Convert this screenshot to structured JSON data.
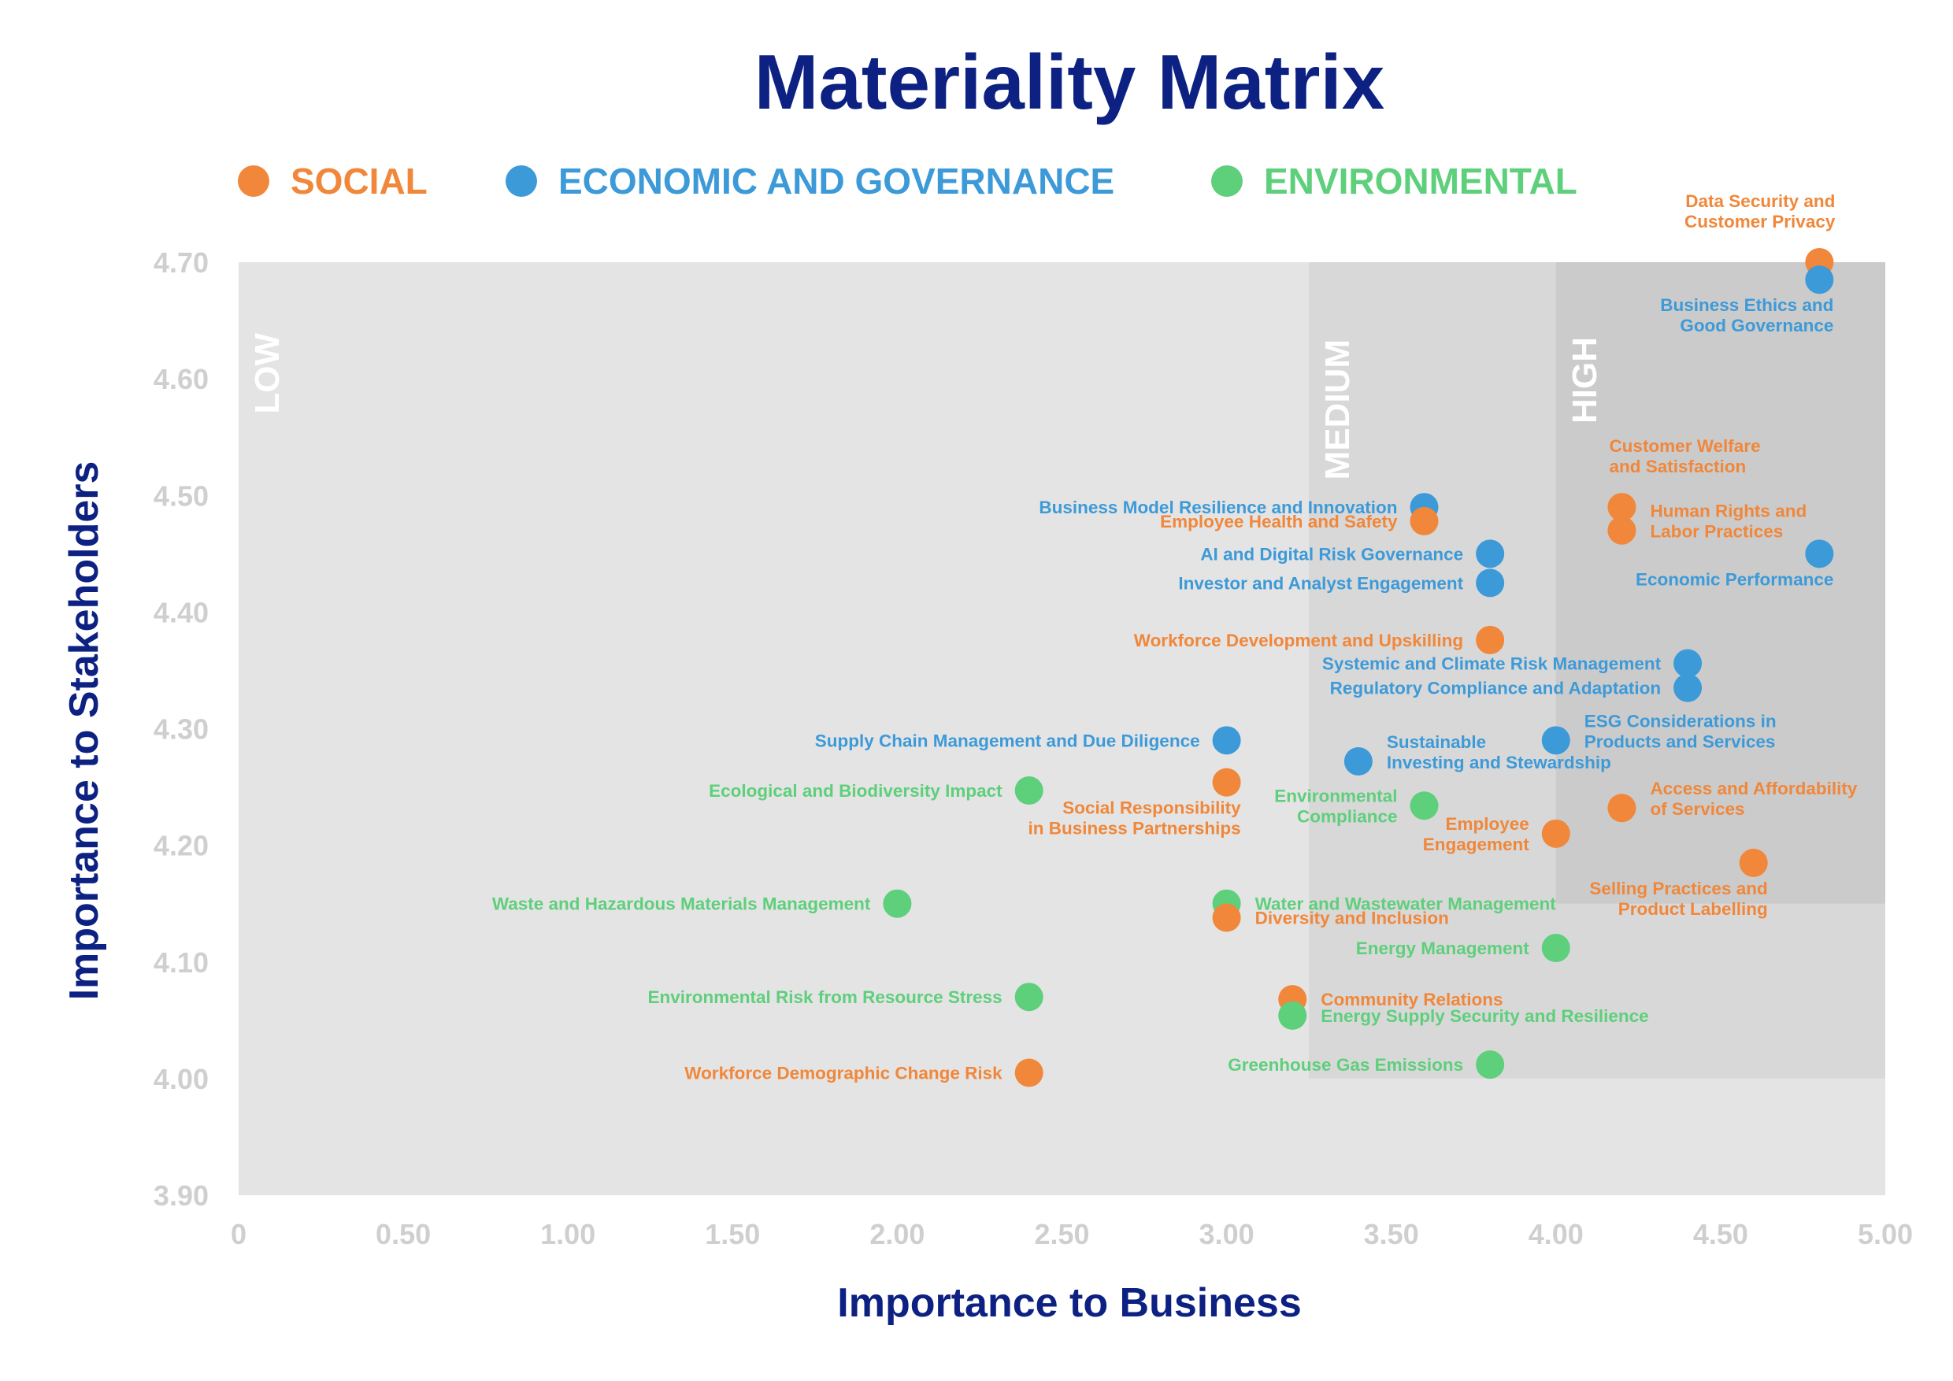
{
  "chart_data": {
    "type": "scatter",
    "title": "Materiality Matrix",
    "xlabel": "Importance to Business",
    "ylabel": "Importance to Stakeholders",
    "xlim": [
      0,
      5.0
    ],
    "ylim": [
      3.9,
      4.7
    ],
    "x_ticks": [
      "0",
      "0.50",
      "1.00",
      "1.50",
      "2.00",
      "2.50",
      "3.00",
      "3.50",
      "4.00",
      "4.50",
      "5.00"
    ],
    "y_ticks": [
      "3.90",
      "4.00",
      "4.10",
      "4.20",
      "4.30",
      "4.40",
      "4.50",
      "4.60",
      "4.70"
    ],
    "zones": [
      {
        "label": "LOW",
        "x_from": 0,
        "x_to": 5.0,
        "y_from": 3.9,
        "y_to": 4.7,
        "color": "#e4e4e4"
      },
      {
        "label": "MEDIUM",
        "x_from": 3.25,
        "x_to": 5.0,
        "y_from": 4.0,
        "y_to": 4.7,
        "color": "#d8d8d8"
      },
      {
        "label": "HIGH",
        "x_from": 4.0,
        "x_to": 5.0,
        "y_from": 4.15,
        "y_to": 4.7,
        "color": "#cbcbcb"
      }
    ],
    "categories": [
      {
        "key": "social",
        "name": "SOCIAL",
        "color": "#f0873a"
      },
      {
        "key": "econ",
        "name": "ECONOMIC AND GOVERNANCE",
        "color": "#3d9ad8"
      },
      {
        "key": "env",
        "name": "ENVIRONMENTAL",
        "color": "#5ecf7b"
      }
    ],
    "points": [
      {
        "cat": "social",
        "x": 4.8,
        "y": 4.7,
        "label": [
          "Data Security and",
          "Customer Privacy"
        ],
        "pos": "above-left"
      },
      {
        "cat": "econ",
        "x": 4.8,
        "y": 4.685,
        "label": [
          "Business Ethics and",
          "Good Governance"
        ],
        "pos": "below-left"
      },
      {
        "cat": "econ",
        "x": 3.6,
        "y": 4.49,
        "label": [
          "Business Model Resilience and Innovation"
        ],
        "pos": "left"
      },
      {
        "cat": "social",
        "x": 3.6,
        "y": 4.478,
        "label": [
          "Employee Health and Safety"
        ],
        "pos": "left"
      },
      {
        "cat": "social",
        "x": 4.2,
        "y": 4.49,
        "label": [
          "Customer Welfare",
          "and Satisfaction"
        ],
        "pos": "above-right"
      },
      {
        "cat": "social",
        "x": 4.2,
        "y": 4.47,
        "label": [
          "Human Rights and",
          "Labor Practices"
        ],
        "pos": "right"
      },
      {
        "cat": "econ",
        "x": 3.8,
        "y": 4.45,
        "label": [
          "AI and Digital Risk Governance"
        ],
        "pos": "left"
      },
      {
        "cat": "econ",
        "x": 3.8,
        "y": 4.425,
        "label": [
          "Investor and Analyst Engagement"
        ],
        "pos": "left"
      },
      {
        "cat": "econ",
        "x": 4.8,
        "y": 4.45,
        "label": [
          "Economic Performance"
        ],
        "pos": "below-left"
      },
      {
        "cat": "social",
        "x": 3.8,
        "y": 4.376,
        "label": [
          "Workforce Development and Upskilling"
        ],
        "pos": "left"
      },
      {
        "cat": "econ",
        "x": 4.4,
        "y": 4.356,
        "label": [
          "Systemic and Climate Risk Management"
        ],
        "pos": "left"
      },
      {
        "cat": "econ",
        "x": 4.4,
        "y": 4.335,
        "label": [
          "Regulatory Compliance and Adaptation"
        ],
        "pos": "left"
      },
      {
        "cat": "econ",
        "x": 3.0,
        "y": 4.29,
        "label": [
          "Supply Chain Management and Due Diligence"
        ],
        "pos": "left"
      },
      {
        "cat": "econ",
        "x": 3.4,
        "y": 4.272,
        "label": [
          "Sustainable",
          "Investing and Stewardship"
        ],
        "pos": "right"
      },
      {
        "cat": "econ",
        "x": 4.0,
        "y": 4.29,
        "label": [
          "ESG Considerations in",
          "Products and Services"
        ],
        "pos": "right"
      },
      {
        "cat": "env",
        "x": 2.4,
        "y": 4.247,
        "label": [
          "Ecological and Biodiversity Impact"
        ],
        "pos": "left"
      },
      {
        "cat": "social",
        "x": 3.0,
        "y": 4.254,
        "label": [
          "Social Responsibility",
          "in Business Partnerships"
        ],
        "pos": "below-left"
      },
      {
        "cat": "env",
        "x": 3.6,
        "y": 4.234,
        "label": [
          "Environmental",
          "Compliance"
        ],
        "pos": "left"
      },
      {
        "cat": "social",
        "x": 4.2,
        "y": 4.232,
        "label": [
          "Access and Affordability",
          "of Services"
        ],
        "pos": "right"
      },
      {
        "cat": "social",
        "x": 4.0,
        "y": 4.21,
        "label": [
          "Employee",
          "Engagement"
        ],
        "pos": "left"
      },
      {
        "cat": "social",
        "x": 4.6,
        "y": 4.185,
        "label": [
          "Selling Practices and",
          "Product Labelling"
        ],
        "pos": "below-left"
      },
      {
        "cat": "env",
        "x": 2.0,
        "y": 4.15,
        "label": [
          "Waste and Hazardous Materials Management"
        ],
        "pos": "left"
      },
      {
        "cat": "env",
        "x": 3.0,
        "y": 4.15,
        "label": [
          "Water and Wastewater Management"
        ],
        "pos": "right"
      },
      {
        "cat": "social",
        "x": 3.0,
        "y": 4.138,
        "label": [
          "Diversity and Inclusion"
        ],
        "pos": "right"
      },
      {
        "cat": "env",
        "x": 4.0,
        "y": 4.112,
        "label": [
          "Energy Management"
        ],
        "pos": "left"
      },
      {
        "cat": "env",
        "x": 2.4,
        "y": 4.07,
        "label": [
          "Environmental Risk from Resource Stress"
        ],
        "pos": "left"
      },
      {
        "cat": "social",
        "x": 3.2,
        "y": 4.068,
        "label": [
          "Community Relations"
        ],
        "pos": "right"
      },
      {
        "cat": "env",
        "x": 3.2,
        "y": 4.054,
        "label": [
          "Energy Supply Security and Resilience"
        ],
        "pos": "right"
      },
      {
        "cat": "social",
        "x": 2.4,
        "y": 4.005,
        "label": [
          "Workforce Demographic Change Risk"
        ],
        "pos": "left"
      },
      {
        "cat": "env",
        "x": 3.8,
        "y": 4.012,
        "label": [
          "Greenhouse Gas Emissions"
        ],
        "pos": "left"
      }
    ]
  }
}
